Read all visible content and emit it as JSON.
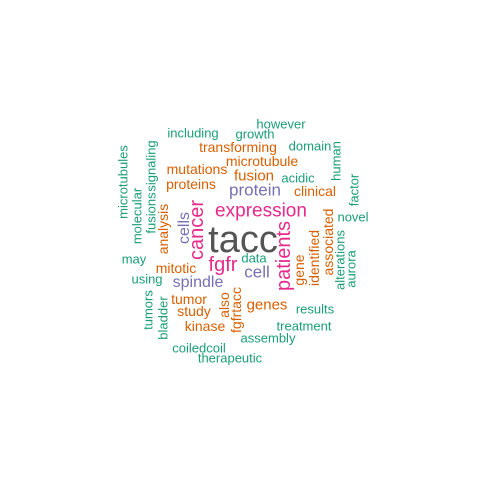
{
  "palette": {
    "dark": "#555555",
    "magenta": "#e7298a",
    "purple": "#7570b3",
    "orange": "#d95f02",
    "green": "#1b9e77"
  },
  "words": [
    {
      "text": "tacc",
      "color": "dark",
      "weight": 10,
      "vertical": false
    },
    {
      "text": "expression",
      "color": "magenta",
      "weight": 6,
      "vertical": false
    },
    {
      "text": "cancer",
      "color": "magenta",
      "weight": 6,
      "vertical": true
    },
    {
      "text": "patients",
      "color": "magenta",
      "weight": 6,
      "vertical": true
    },
    {
      "text": "fgfr",
      "color": "magenta",
      "weight": 6,
      "vertical": false
    },
    {
      "text": "protein",
      "color": "purple",
      "weight": 5,
      "vertical": false
    },
    {
      "text": "cell",
      "color": "purple",
      "weight": 5,
      "vertical": false
    },
    {
      "text": "spindle",
      "color": "purple",
      "weight": 5,
      "vertical": false
    },
    {
      "text": "cells",
      "color": "purple",
      "weight": 5,
      "vertical": true
    },
    {
      "text": "fusion",
      "color": "orange",
      "weight": 4,
      "vertical": false
    },
    {
      "text": "microtubule",
      "color": "orange",
      "weight": 4,
      "vertical": false
    },
    {
      "text": "mutations",
      "color": "orange",
      "weight": 4,
      "vertical": false
    },
    {
      "text": "proteins",
      "color": "orange",
      "weight": 4,
      "vertical": false
    },
    {
      "text": "transforming",
      "color": "orange",
      "weight": 4,
      "vertical": false
    },
    {
      "text": "clinical",
      "color": "orange",
      "weight": 4,
      "vertical": false
    },
    {
      "text": "mitotic",
      "color": "orange",
      "weight": 4,
      "vertical": false
    },
    {
      "text": "tumor",
      "color": "orange",
      "weight": 4,
      "vertical": false
    },
    {
      "text": "study",
      "color": "orange",
      "weight": 4,
      "vertical": false
    },
    {
      "text": "kinase",
      "color": "orange",
      "weight": 4,
      "vertical": false
    },
    {
      "text": "genes",
      "color": "orange",
      "weight": 4,
      "vertical": false
    },
    {
      "text": "analysis",
      "color": "orange",
      "weight": 4,
      "vertical": true
    },
    {
      "text": "gene",
      "color": "orange",
      "weight": 4,
      "vertical": true
    },
    {
      "text": "identified",
      "color": "orange",
      "weight": 4,
      "vertical": true
    },
    {
      "text": "associated",
      "color": "orange",
      "weight": 4,
      "vertical": true
    },
    {
      "text": "also",
      "color": "orange",
      "weight": 4,
      "vertical": true
    },
    {
      "text": "fgfrtacc",
      "color": "orange",
      "weight": 4,
      "vertical": true
    },
    {
      "text": "however",
      "color": "green",
      "weight": 3,
      "vertical": false
    },
    {
      "text": "including",
      "color": "green",
      "weight": 3,
      "vertical": false
    },
    {
      "text": "growth",
      "color": "green",
      "weight": 3,
      "vertical": false
    },
    {
      "text": "domain",
      "color": "green",
      "weight": 3,
      "vertical": false
    },
    {
      "text": "acidic",
      "color": "green",
      "weight": 3,
      "vertical": false
    },
    {
      "text": "novel",
      "color": "green",
      "weight": 3,
      "vertical": false
    },
    {
      "text": "data",
      "color": "green",
      "weight": 3,
      "vertical": false
    },
    {
      "text": "may",
      "color": "green",
      "weight": 3,
      "vertical": false
    },
    {
      "text": "using",
      "color": "green",
      "weight": 3,
      "vertical": false
    },
    {
      "text": "results",
      "color": "green",
      "weight": 3,
      "vertical": false
    },
    {
      "text": "treatment",
      "color": "green",
      "weight": 3,
      "vertical": false
    },
    {
      "text": "assembly",
      "color": "green",
      "weight": 3,
      "vertical": false
    },
    {
      "text": "coiledcoil",
      "color": "green",
      "weight": 3,
      "vertical": false
    },
    {
      "text": "therapeutic",
      "color": "green",
      "weight": 3,
      "vertical": false
    },
    {
      "text": "microtubules",
      "color": "green",
      "weight": 3,
      "vertical": true
    },
    {
      "text": "signaling",
      "color": "green",
      "weight": 3,
      "vertical": true
    },
    {
      "text": "molecular",
      "color": "green",
      "weight": 3,
      "vertical": true
    },
    {
      "text": "fusions",
      "color": "green",
      "weight": 3,
      "vertical": true
    },
    {
      "text": "human",
      "color": "green",
      "weight": 3,
      "vertical": true
    },
    {
      "text": "factor",
      "color": "green",
      "weight": 3,
      "vertical": true
    },
    {
      "text": "alterations",
      "color": "green",
      "weight": 3,
      "vertical": true
    },
    {
      "text": "aurora",
      "color": "green",
      "weight": 3,
      "vertical": true
    },
    {
      "text": "tumors",
      "color": "green",
      "weight": 3,
      "vertical": true
    },
    {
      "text": "bladder",
      "color": "green",
      "weight": 3,
      "vertical": true
    }
  ]
}
